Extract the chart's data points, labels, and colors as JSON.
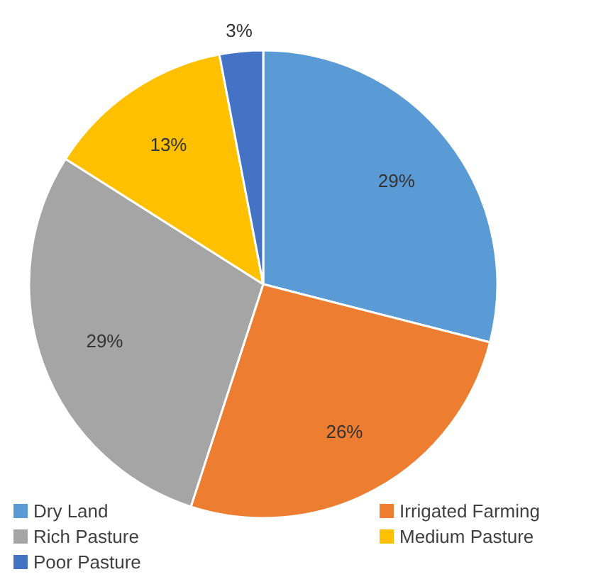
{
  "chart_data": {
    "type": "pie",
    "categories": [
      "Dry Land",
      "Irrigated Farming",
      "Rich Pasture",
      "Medium Pasture",
      "Poor Pasture"
    ],
    "values": [
      29,
      26,
      29,
      13,
      3
    ],
    "colors": [
      "#5b9bd5",
      "#ed7d31",
      "#a5a5a5",
      "#ffc000",
      "#4472c4"
    ],
    "value_labels": [
      "29%",
      "26%",
      "29%",
      "13%",
      "3%"
    ],
    "legend": "bottom"
  }
}
